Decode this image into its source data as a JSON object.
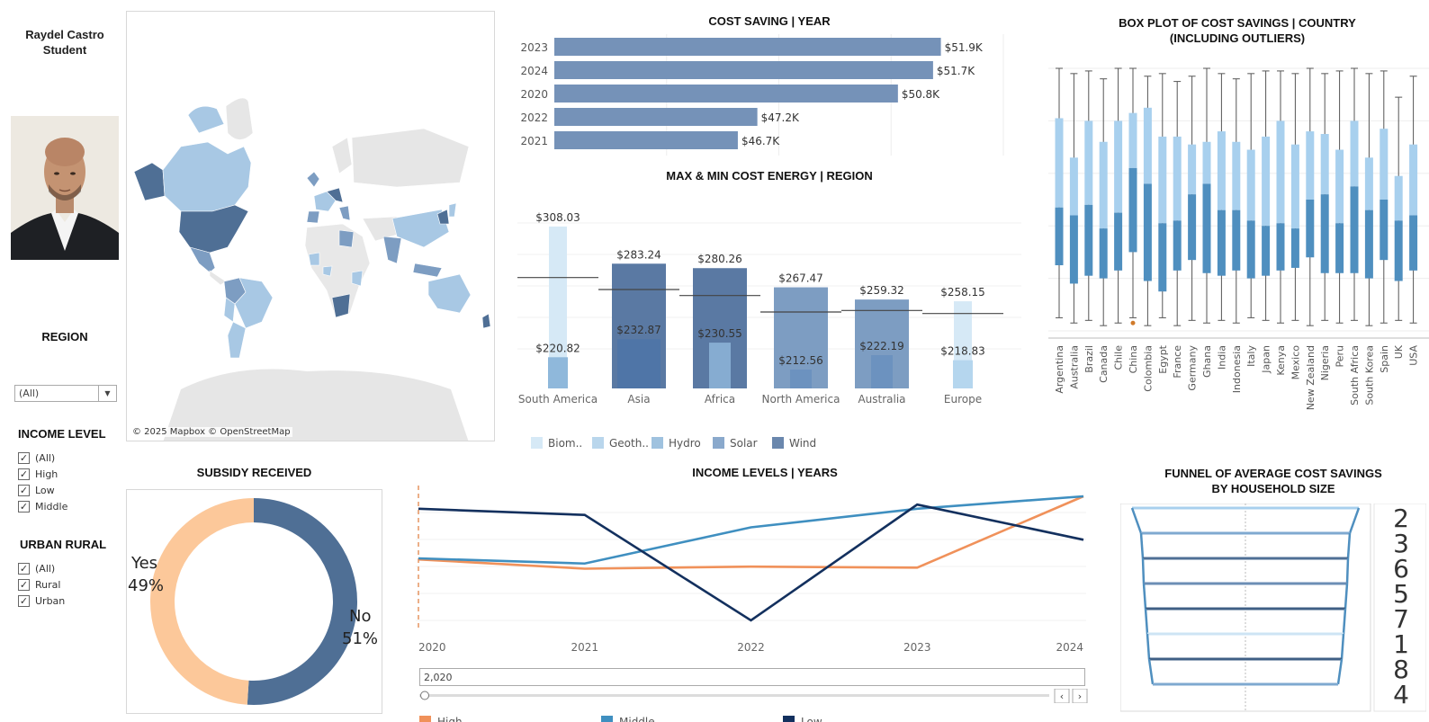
{
  "profile": {
    "name": "Raydel Castro",
    "role": "Student"
  },
  "filters": {
    "region": {
      "title": "REGION",
      "selected": "(All)"
    },
    "income": {
      "title": "INCOME LEVEL",
      "options": [
        "(All)",
        "High",
        "Low",
        "Middle"
      ]
    },
    "urban": {
      "title": "URBAN RURAL",
      "options": [
        "(All)",
        "Rural",
        "Urban"
      ]
    }
  },
  "map": {
    "credit": "© 2025 Mapbox © OpenStreetMap"
  },
  "colors": {
    "dark": "#4f6f95",
    "mid": "#7d9dc2",
    "light": "#a8c8e4",
    "vlight": "#cfe3f2",
    "high": "#f0915a",
    "middle": "#3f8fc0",
    "low": "#13305e",
    "peach": "#fcc89a"
  },
  "charts": {
    "cost_saving": {
      "title": "COST SAVING | YEAR",
      "chart_data": {
        "type": "bar",
        "categories": [
          "2023",
          "2024",
          "2020",
          "2022",
          "2021"
        ],
        "values": [
          51.9,
          51.7,
          50.8,
          47.2,
          46.7
        ],
        "labels": [
          "$51.9K",
          "$51.7K",
          "$50.8K",
          "$47.2K",
          "$46.7K"
        ]
      }
    },
    "region_energy": {
      "title": "MAX & MIN COST ENERGY | REGION",
      "chart_data": {
        "type": "bar",
        "categories": [
          "South America",
          "Asia",
          "Africa",
          "North America",
          "Australia",
          "Europe"
        ],
        "max_labels": [
          "$308.03",
          "$283.24",
          "$280.26",
          "$267.47",
          "$259.32",
          "$258.15"
        ],
        "min_labels": [
          "$220.82",
          "$232.87",
          "$230.55",
          "$212.56",
          "$222.19",
          "$218.83"
        ],
        "max": [
          308.03,
          283.24,
          280.26,
          267.47,
          259.32,
          258.15
        ],
        "min": [
          220.82,
          232.87,
          230.55,
          212.56,
          222.19,
          218.83
        ],
        "max_type": [
          "Biomass",
          "Wind",
          "Wind",
          "Solar",
          "Solar",
          "Biomass"
        ],
        "min_type": [
          "Geothermal",
          "Wind",
          "Hydro",
          "Solar",
          "Solar",
          "Biomass"
        ],
        "avg": [
          274,
          266,
          262,
          251,
          252,
          250
        ],
        "legend": [
          "Biom..",
          "Geoth..",
          "Hydro",
          "Solar",
          "Wind"
        ],
        "ylim": [
          200,
          320
        ]
      }
    },
    "boxplot": {
      "title_line1": "BOX PLOT OF COST SAVINGS | COUNTRY",
      "title_line2": "(INCLUDING OUTLIERS)",
      "chart_data": {
        "type": "box",
        "categories": [
          "Argentina",
          "Australia",
          "Brazil",
          "Canada",
          "Chile",
          "China",
          "Colombia",
          "Egypt",
          "France",
          "Germany",
          "Ghana",
          "India",
          "Indonesia",
          "Italy",
          "Japan",
          "Kenya",
          "Mexico",
          "New Zealand",
          "Nigeria",
          "Peru",
          "South Africa",
          "South Korea",
          "Spain",
          "UK",
          "USA"
        ],
        "whisker_high": [
          100,
          98,
          99,
          96,
          100,
          100,
          97,
          98,
          95,
          97,
          100,
          98,
          96,
          98,
          99,
          99,
          98,
          100,
          98,
          99,
          100,
          98,
          99,
          89,
          97
        ],
        "q3": [
          81,
          66,
          80,
          72,
          80,
          83,
          85,
          74,
          74,
          71,
          72,
          76,
          72,
          69,
          74,
          80,
          71,
          76,
          75,
          69,
          80,
          66,
          77,
          59,
          71
        ],
        "median": [
          47,
          44,
          48,
          39,
          45,
          62,
          56,
          41,
          42,
          52,
          56,
          46,
          46,
          42,
          40,
          41,
          39,
          50,
          52,
          41,
          55,
          46,
          50,
          42,
          44
        ],
        "q1": [
          25,
          18,
          21,
          20,
          23,
          30,
          19,
          15,
          23,
          27,
          22,
          21,
          23,
          20,
          21,
          23,
          24,
          28,
          22,
          22,
          22,
          20,
          27,
          19,
          23
        ],
        "whisker_low": [
          5,
          3,
          4,
          2,
          3,
          5,
          2,
          5,
          2,
          4,
          3,
          4,
          3,
          5,
          4,
          3,
          4,
          2,
          4,
          3,
          4,
          2,
          3,
          4,
          3
        ],
        "outliers": [
          {
            "category": "China",
            "value": 3
          }
        ],
        "ylim": [
          0,
          100
        ]
      }
    },
    "subsidy": {
      "title": "SUBSIDY RECEIVED",
      "chart_data": {
        "type": "pie",
        "categories": [
          "Yes",
          "No"
        ],
        "values": [
          49,
          51
        ],
        "labels": [
          "49%",
          "51%"
        ]
      }
    },
    "income_years": {
      "title": "INCOME LEVELS | YEARS",
      "slider_value": "2,020",
      "chart_data": {
        "type": "line",
        "x": [
          "2020",
          "2021",
          "2022",
          "2023",
          "2024"
        ],
        "series": [
          {
            "name": "High",
            "values": [
              39,
              30,
              32,
              31,
              100
            ]
          },
          {
            "name": "Middle",
            "values": [
              40,
              35,
              70,
              88,
              100
            ]
          },
          {
            "name": "Low",
            "values": [
              88,
              82,
              -20,
              92,
              58
            ]
          }
        ]
      }
    },
    "funnel": {
      "title_line1": "FUNNEL OF AVERAGE COST SAVINGS",
      "title_line2": "BY HOUSEHOLD SIZE",
      "chart_data": {
        "type": "funnel",
        "categories": [
          "2",
          "3",
          "6",
          "5",
          "7",
          "1",
          "8",
          "4"
        ],
        "values": [
          100,
          97,
          96,
          95,
          94,
          93,
          92,
          90
        ]
      }
    }
  }
}
